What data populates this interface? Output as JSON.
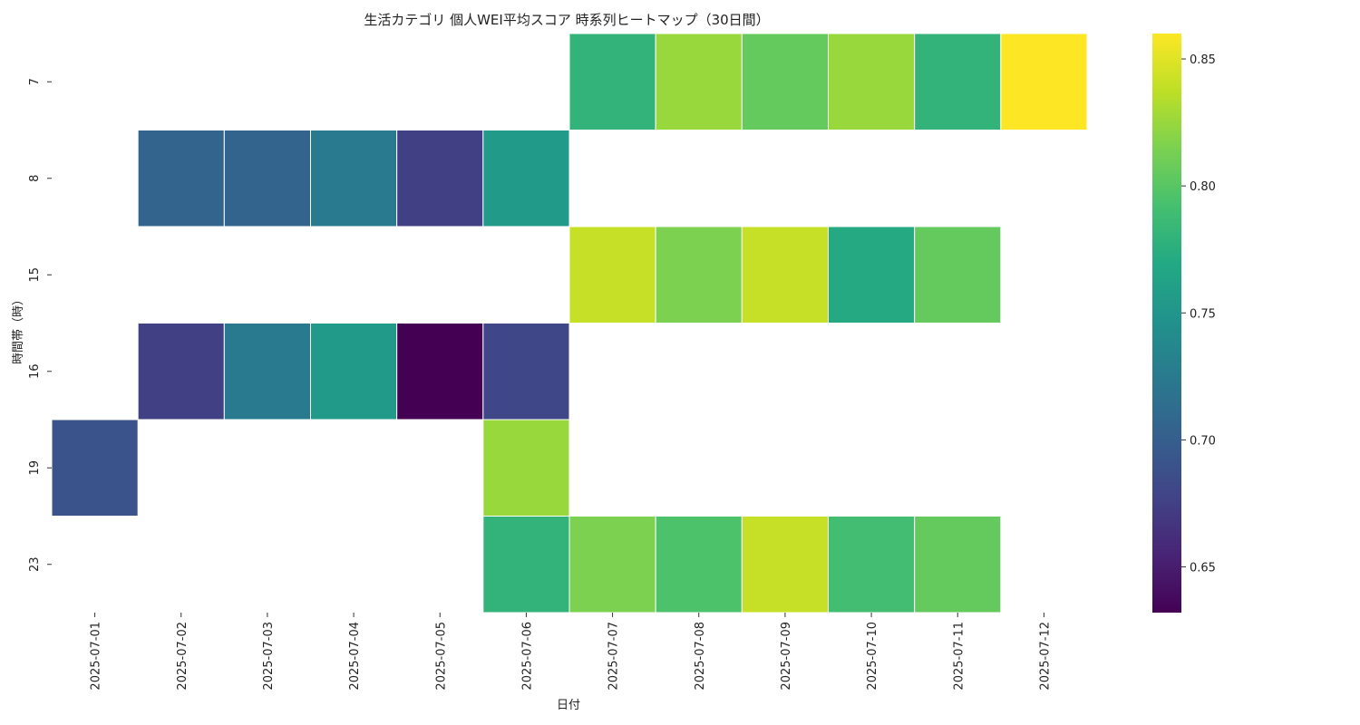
{
  "chart_data": {
    "type": "heatmap",
    "title": "生活カテゴリ 個人WEI平均スコア 時系列ヒートマップ（30日間）",
    "xlabel": "日付",
    "ylabel": "時間帯（時）",
    "x_categories": [
      "2025-07-01",
      "2025-07-02",
      "2025-07-03",
      "2025-07-04",
      "2025-07-05",
      "2025-07-06",
      "2025-07-07",
      "2025-07-08",
      "2025-07-09",
      "2025-07-10",
      "2025-07-11",
      "2025-07-12"
    ],
    "y_categories": [
      "7",
      "8",
      "15",
      "16",
      "19",
      "23"
    ],
    "values": [
      [
        null,
        null,
        null,
        null,
        null,
        null,
        0.78,
        0.825,
        0.805,
        0.825,
        0.78,
        0.86
      ],
      [
        null,
        0.705,
        0.705,
        0.725,
        0.675,
        0.755,
        null,
        null,
        null,
        null,
        null,
        null
      ],
      [
        null,
        null,
        null,
        null,
        null,
        null,
        0.84,
        0.815,
        0.84,
        0.77,
        0.805,
        null
      ],
      [
        null,
        0.675,
        0.725,
        0.755,
        0.632,
        0.68,
        null,
        null,
        null,
        null,
        null,
        null
      ],
      [
        0.69,
        null,
        null,
        null,
        null,
        0.825,
        null,
        null,
        null,
        null,
        null,
        null
      ],
      [
        null,
        null,
        null,
        null,
        null,
        0.78,
        0.815,
        0.795,
        0.84,
        0.79,
        0.805,
        null
      ]
    ],
    "colormap": "viridis",
    "vmin": 0.632,
    "vmax": 0.86,
    "colorbar_ticks": [
      0.65,
      0.7,
      0.75,
      0.8,
      0.85
    ],
    "colorbar_tick_labels": [
      "0.65",
      "0.70",
      "0.75",
      "0.80",
      "0.85"
    ]
  }
}
